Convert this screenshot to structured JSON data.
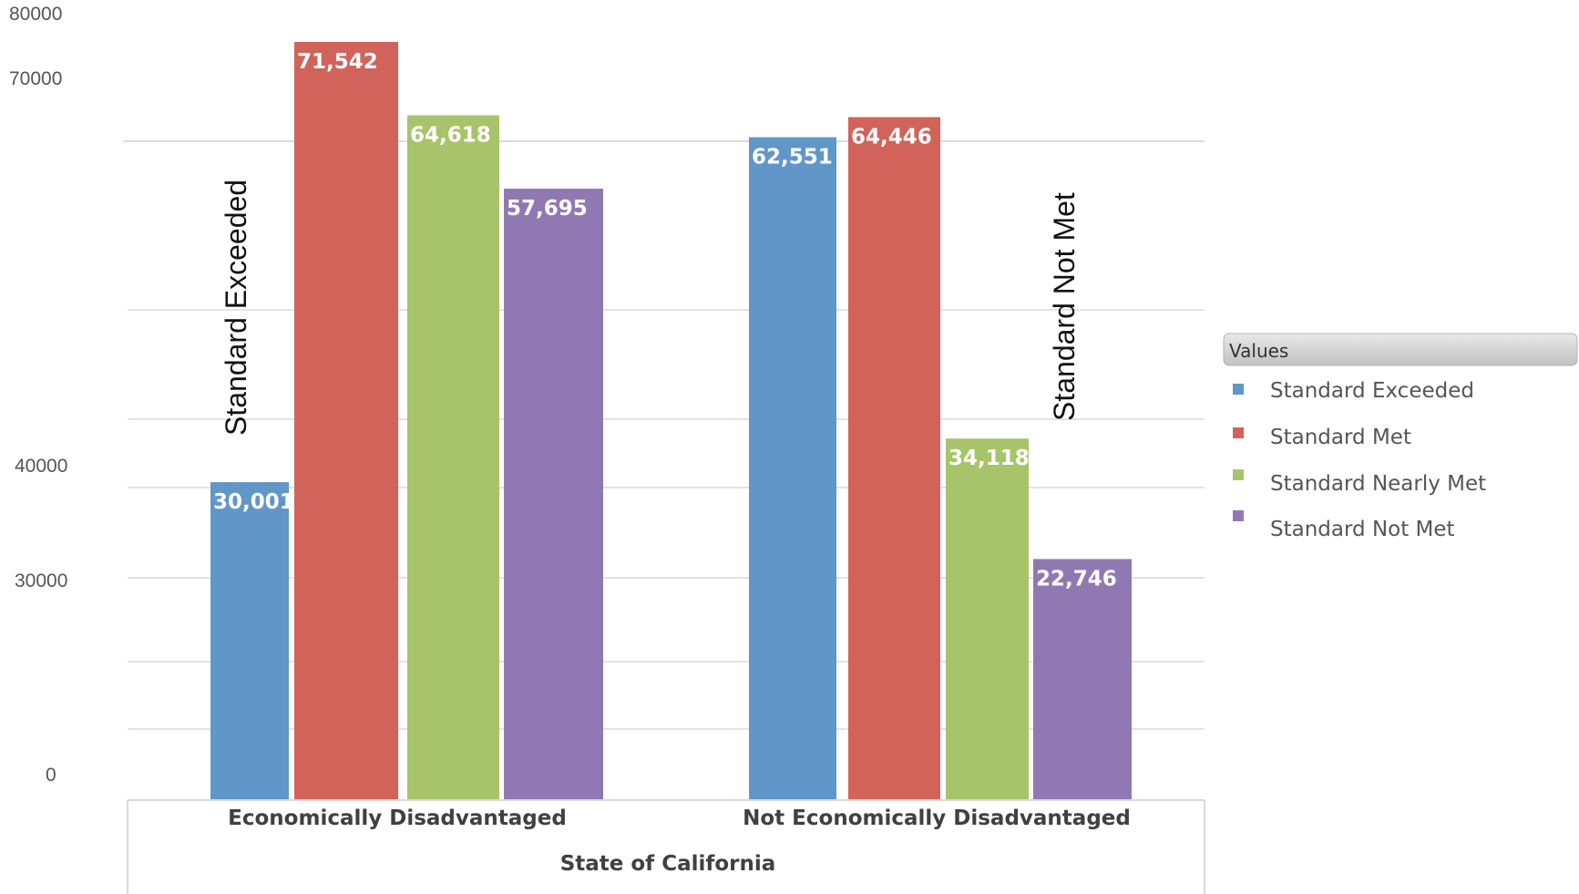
{
  "chart_data": {
    "type": "bar",
    "categories": [
      "Economically Disadvantaged",
      "Not Economically Disadvantaged"
    ],
    "series": [
      {
        "name": "Standard Exceeded",
        "color": "#6196c9",
        "values": [
          30001,
          62551
        ],
        "labels": [
          "30,001",
          "62,551"
        ]
      },
      {
        "name": "Standard Met",
        "color": "#d1635a",
        "values": [
          71542,
          64446
        ],
        "labels": [
          "71,542",
          "64,446"
        ]
      },
      {
        "name": "Standard Nearly Met",
        "color": "#a8c46a",
        "values": [
          64618,
          34118
        ],
        "labels": [
          "64,618",
          "34,118"
        ]
      },
      {
        "name": "Standard Not Met",
        "color": "#9079b2",
        "values": [
          57695,
          22746
        ],
        "labels": [
          "57,695",
          "22,746"
        ]
      }
    ],
    "yticks": [
      "80000",
      "70000",
      "40000",
      "30000",
      "0"
    ],
    "xlabel": "State of California",
    "legend": {
      "title": "Values",
      "position": "right"
    },
    "annotations": [
      "Standard Exceeded",
      "Standard Not Met"
    ],
    "grid": true
  }
}
